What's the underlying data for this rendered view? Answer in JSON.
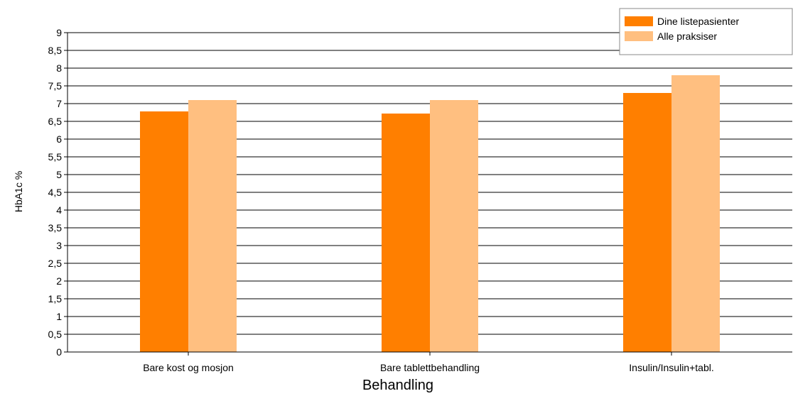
{
  "chart_data": {
    "type": "bar",
    "categories": [
      "Bare kost og mosjon",
      "Bare tablettbehandling",
      "Insulin/Insulin+tabl."
    ],
    "series": [
      {
        "name": "Dine listepasienter",
        "values": [
          6.78,
          6.72,
          7.3
        ],
        "color": "#ff7f00"
      },
      {
        "name": "Alle praksiser",
        "values": [
          7.1,
          7.1,
          7.8
        ],
        "color": "#ffbf80"
      }
    ],
    "xlabel": "Behandling",
    "ylabel": "HbA1c %",
    "ylim": [
      0,
      9
    ],
    "yticks": [
      "0",
      "0,5",
      "1",
      "1,5",
      "2",
      "2,5",
      "3",
      "3,5",
      "4",
      "4,5",
      "5",
      "5,5",
      "6",
      "6,5",
      "7",
      "7,5",
      "8",
      "8,5",
      "9"
    ],
    "grid": true,
    "legend_position": "top-right"
  }
}
